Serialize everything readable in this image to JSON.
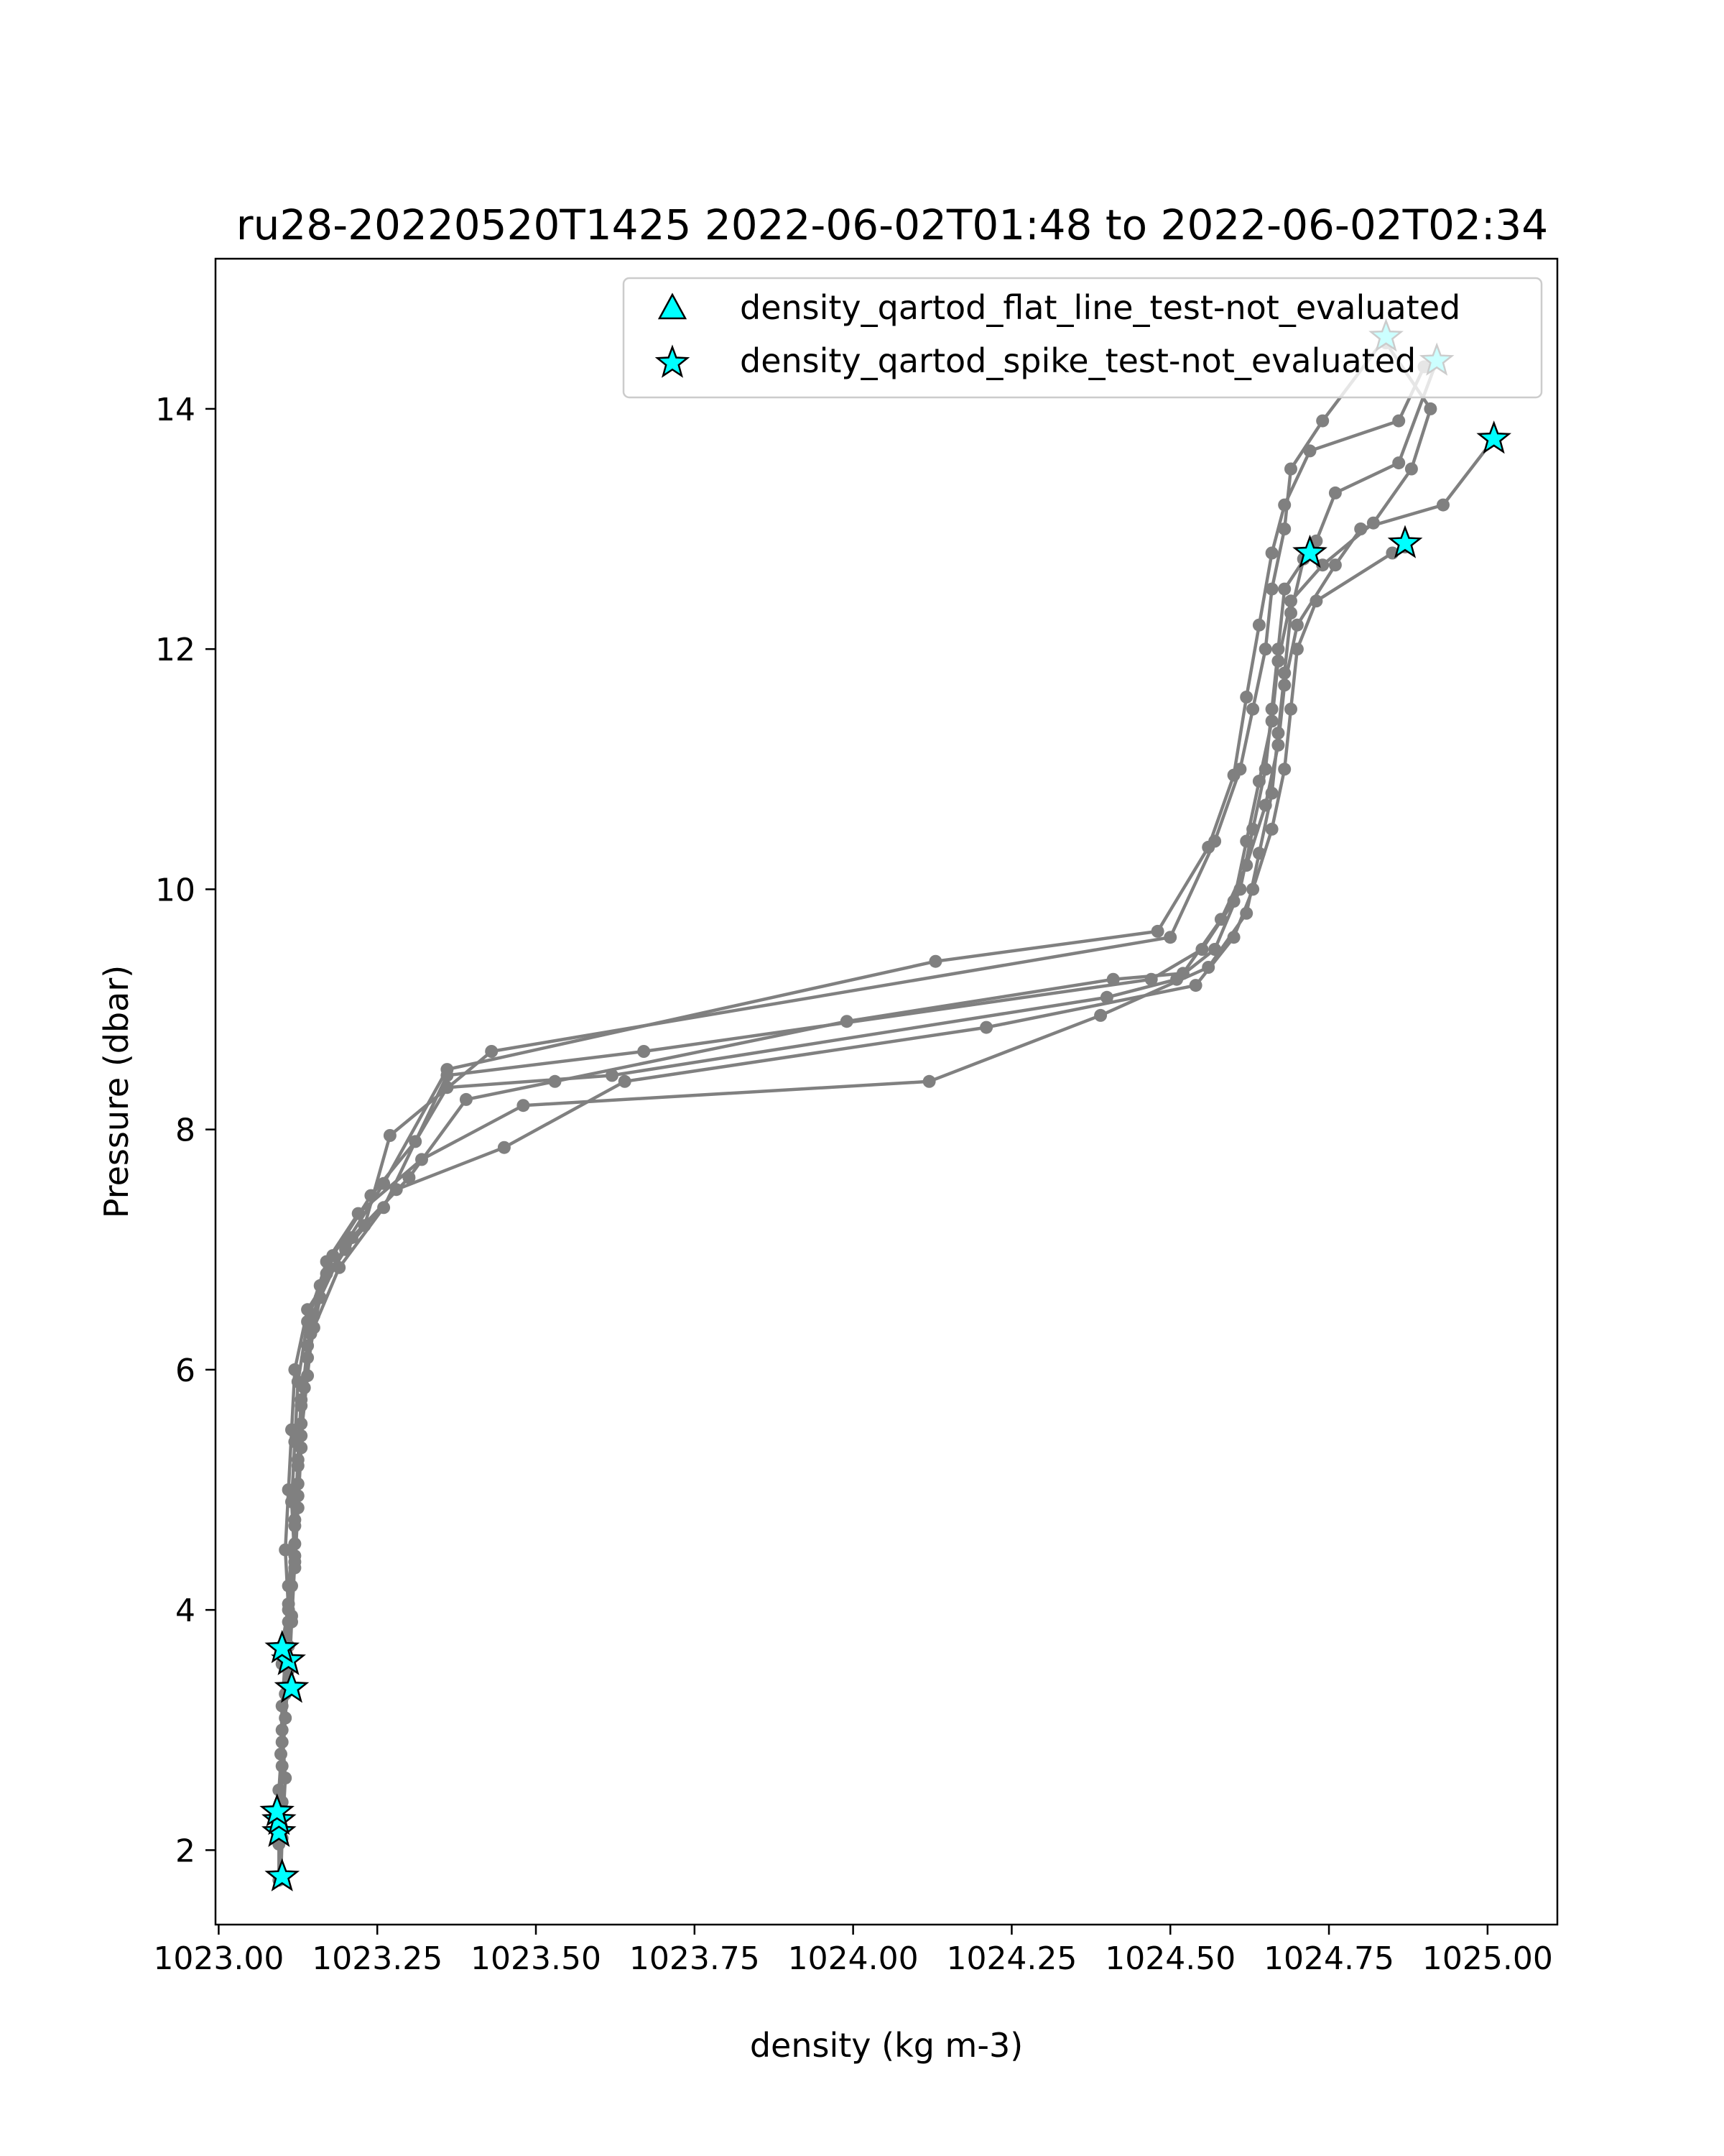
{
  "chart_data": {
    "type": "line",
    "title": "ru28-20220520T1425 2022-06-02T01:48 to 2022-06-02T02:34",
    "xlabel": "density (kg m-3)",
    "ylabel": "Pressure (dbar)",
    "xlim": [
      1022.995,
      1025.11
    ],
    "ylim": [
      15.25,
      1.38
    ],
    "y_inverted": true,
    "grid": false,
    "xticks": [
      1023.0,
      1023.25,
      1023.5,
      1023.75,
      1024.0,
      1024.25,
      1024.5,
      1024.75,
      1025.0
    ],
    "xtick_labels": [
      "1023.00",
      "1023.25",
      "1023.50",
      "1023.75",
      "1024.00",
      "1024.25",
      "1024.50",
      "1024.75",
      "1025.00"
    ],
    "yticks": [
      2,
      4,
      6,
      8,
      10,
      12,
      14
    ],
    "ytick_labels": [
      "2",
      "4",
      "6",
      "8",
      "10",
      "12",
      "14"
    ],
    "line_color": "#808080",
    "marker_color": "#00ffff",
    "legend_position": "upper right",
    "legend": [
      {
        "label": "density_qartod_flat_line_test-not_evaluated",
        "marker": "triangle"
      },
      {
        "label": "density_qartod_spike_test-not_evaluated",
        "marker": "star"
      }
    ],
    "series": [
      {
        "points": [
          [
            1023.095,
            1.75
          ],
          [
            1023.095,
            2.05
          ],
          [
            1023.1,
            2.4
          ],
          [
            1023.098,
            2.8
          ],
          [
            1023.1,
            3.2
          ],
          [
            1023.105,
            3.6
          ],
          [
            1023.11,
            4.0
          ],
          [
            1023.105,
            4.5
          ],
          [
            1023.11,
            5.0
          ],
          [
            1023.115,
            5.5
          ],
          [
            1023.12,
            6.0
          ],
          [
            1023.14,
            6.5
          ],
          [
            1023.2,
            7.0
          ],
          [
            1023.28,
            7.5
          ],
          [
            1023.45,
            7.85
          ],
          [
            1023.64,
            8.4
          ],
          [
            1024.21,
            8.85
          ],
          [
            1024.54,
            9.2
          ],
          [
            1024.6,
            9.6
          ],
          [
            1024.63,
            10.0
          ],
          [
            1024.66,
            10.5
          ],
          [
            1024.68,
            11.0
          ],
          [
            1024.69,
            11.5
          ],
          [
            1024.7,
            12.0
          ],
          [
            1024.73,
            12.4
          ],
          [
            1024.85,
            12.8
          ],
          [
            1024.87,
            12.85
          ]
        ]
      },
      {
        "points": [
          [
            1023.098,
            1.78
          ],
          [
            1023.1,
            2.1
          ],
          [
            1023.105,
            2.6
          ],
          [
            1023.1,
            3.0
          ],
          [
            1023.11,
            3.35
          ],
          [
            1023.115,
            3.9
          ],
          [
            1023.12,
            4.4
          ],
          [
            1023.115,
            4.9
          ],
          [
            1023.12,
            5.4
          ],
          [
            1023.125,
            5.9
          ],
          [
            1023.14,
            6.4
          ],
          [
            1023.17,
            6.9
          ],
          [
            1023.22,
            7.3
          ],
          [
            1023.32,
            7.75
          ],
          [
            1023.48,
            8.2
          ],
          [
            1024.12,
            8.4
          ],
          [
            1024.39,
            8.95
          ],
          [
            1024.56,
            9.35
          ],
          [
            1024.62,
            9.8
          ],
          [
            1024.64,
            10.3
          ],
          [
            1024.66,
            10.8
          ],
          [
            1024.67,
            11.3
          ],
          [
            1024.68,
            11.8
          ],
          [
            1024.69,
            12.3
          ],
          [
            1024.71,
            12.75
          ]
        ]
      },
      {
        "points": [
          [
            1023.092,
            2.15
          ],
          [
            1023.095,
            2.5
          ],
          [
            1023.1,
            2.9
          ],
          [
            1023.105,
            3.3
          ],
          [
            1023.11,
            3.7
          ],
          [
            1023.11,
            4.2
          ],
          [
            1023.12,
            4.7
          ],
          [
            1023.125,
            5.2
          ],
          [
            1023.13,
            5.7
          ],
          [
            1023.14,
            6.2
          ],
          [
            1023.16,
            6.7
          ],
          [
            1023.21,
            7.1
          ],
          [
            1023.3,
            7.6
          ],
          [
            1023.39,
            8.25
          ],
          [
            1023.53,
            8.4
          ],
          [
            1023.99,
            8.9
          ],
          [
            1024.41,
            9.25
          ],
          [
            1024.52,
            9.3
          ],
          [
            1024.58,
            9.75
          ],
          [
            1024.62,
            10.2
          ],
          [
            1024.65,
            10.7
          ],
          [
            1024.67,
            11.2
          ],
          [
            1024.68,
            11.7
          ],
          [
            1024.7,
            12.2
          ],
          [
            1024.76,
            12.7
          ],
          [
            1024.8,
            13.0
          ],
          [
            1024.93,
            13.2
          ],
          [
            1025.01,
            13.75
          ]
        ]
      },
      {
        "points": [
          [
            1023.09,
            2.3
          ],
          [
            1023.1,
            2.7
          ],
          [
            1023.105,
            3.1
          ],
          [
            1023.11,
            3.5
          ],
          [
            1023.115,
            3.95
          ],
          [
            1023.12,
            4.45
          ],
          [
            1023.125,
            4.95
          ],
          [
            1023.13,
            5.45
          ],
          [
            1023.14,
            5.95
          ],
          [
            1023.15,
            6.45
          ],
          [
            1023.18,
            6.95
          ],
          [
            1023.24,
            7.45
          ],
          [
            1023.31,
            7.9
          ],
          [
            1023.36,
            8.35
          ],
          [
            1023.62,
            8.45
          ],
          [
            1024.4,
            9.1
          ],
          [
            1024.51,
            9.25
          ],
          [
            1024.57,
            9.5
          ],
          [
            1024.61,
            10.0
          ],
          [
            1024.63,
            10.5
          ],
          [
            1024.65,
            11.0
          ],
          [
            1024.66,
            11.5
          ],
          [
            1024.67,
            12.0
          ],
          [
            1024.68,
            12.5
          ],
          [
            1024.73,
            12.9
          ],
          [
            1024.76,
            13.3
          ],
          [
            1024.86,
            13.55
          ],
          [
            1024.92,
            14.4
          ]
        ]
      },
      {
        "points": [
          [
            1023.1,
            3.55
          ],
          [
            1023.11,
            4.05
          ],
          [
            1023.12,
            4.55
          ],
          [
            1023.125,
            5.05
          ],
          [
            1023.13,
            5.55
          ],
          [
            1023.14,
            6.1
          ],
          [
            1023.16,
            6.6
          ],
          [
            1023.2,
            7.05
          ],
          [
            1023.26,
            7.55
          ],
          [
            1023.36,
            8.5
          ],
          [
            1024.13,
            9.4
          ],
          [
            1024.48,
            9.65
          ],
          [
            1024.56,
            10.35
          ],
          [
            1024.6,
            10.95
          ],
          [
            1024.62,
            11.6
          ],
          [
            1024.64,
            12.2
          ],
          [
            1024.66,
            12.8
          ],
          [
            1024.68,
            13.2
          ],
          [
            1024.72,
            13.65
          ],
          [
            1024.86,
            13.9
          ],
          [
            1024.9,
            14.35
          ],
          [
            1024.92,
            14.4
          ]
        ]
      },
      {
        "points": [
          [
            1023.1,
            3.7
          ],
          [
            1023.115,
            4.2
          ],
          [
            1023.12,
            4.75
          ],
          [
            1023.125,
            5.25
          ],
          [
            1023.13,
            5.75
          ],
          [
            1023.145,
            6.3
          ],
          [
            1023.17,
            6.8
          ],
          [
            1023.23,
            7.2
          ],
          [
            1023.27,
            7.95
          ],
          [
            1023.43,
            8.65
          ],
          [
            1024.5,
            9.6
          ],
          [
            1024.57,
            10.4
          ],
          [
            1024.61,
            11.0
          ],
          [
            1024.63,
            11.5
          ],
          [
            1024.65,
            12.0
          ],
          [
            1024.66,
            12.5
          ],
          [
            1024.68,
            13.0
          ],
          [
            1024.69,
            13.5
          ],
          [
            1024.74,
            13.9
          ],
          [
            1024.84,
            14.6
          ]
        ]
      },
      {
        "points": [
          [
            1023.11,
            3.9
          ],
          [
            1023.12,
            4.35
          ],
          [
            1023.125,
            4.85
          ],
          [
            1023.13,
            5.35
          ],
          [
            1023.135,
            5.85
          ],
          [
            1023.15,
            6.35
          ],
          [
            1023.19,
            6.85
          ],
          [
            1023.26,
            7.35
          ],
          [
            1023.36,
            8.45
          ],
          [
            1023.67,
            8.65
          ],
          [
            1024.47,
            9.25
          ],
          [
            1024.55,
            9.5
          ],
          [
            1024.6,
            9.9
          ],
          [
            1024.62,
            10.4
          ],
          [
            1024.64,
            10.9
          ],
          [
            1024.66,
            11.4
          ],
          [
            1024.67,
            11.9
          ],
          [
            1024.69,
            12.4
          ],
          [
            1024.74,
            12.7
          ],
          [
            1024.82,
            13.05
          ],
          [
            1024.88,
            13.5
          ],
          [
            1024.91,
            14.0
          ],
          [
            1024.84,
            14.55
          ]
        ]
      }
    ],
    "spike_markers": [
      [
        1023.1,
        1.78
      ],
      [
        1023.095,
        2.15
      ],
      [
        1023.095,
        2.25
      ],
      [
        1023.092,
        2.32
      ],
      [
        1023.115,
        3.35
      ],
      [
        1023.11,
        3.58
      ],
      [
        1023.1,
        3.68
      ],
      [
        1024.72,
        12.8
      ],
      [
        1024.87,
        12.88
      ],
      [
        1025.01,
        13.75
      ],
      [
        1024.92,
        14.4
      ],
      [
        1024.84,
        14.6
      ]
    ]
  }
}
